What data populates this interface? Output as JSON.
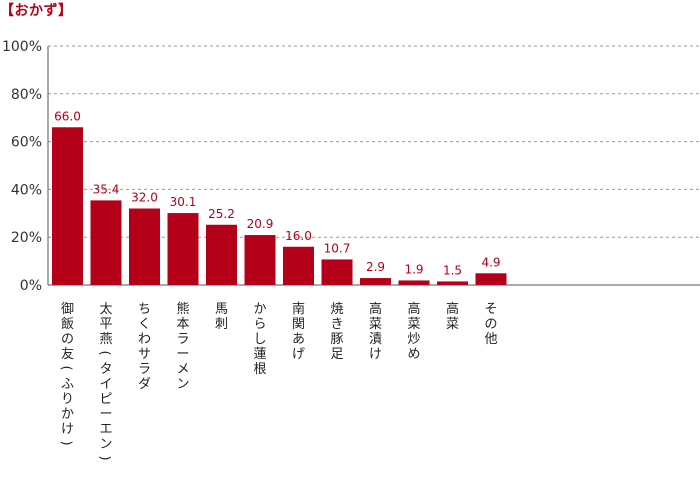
{
  "heading": "【おかず】",
  "chart_data": {
    "type": "bar",
    "categories": [
      "御飯の友(ふりかけ)",
      "太平燕(タイピーエン)",
      "ちくわサラダ",
      "熊本ラーメン",
      "馬刺",
      "からし蓮根",
      "南関あげ",
      "焼き豚足",
      "高菜漬け",
      "高菜炒め",
      "高菜",
      "その他"
    ],
    "values": [
      66.0,
      35.4,
      32.0,
      30.1,
      25.2,
      20.9,
      16.0,
      10.7,
      2.9,
      1.9,
      1.5,
      4.9
    ],
    "value_labels": [
      "66.0",
      "35.4",
      "32.0",
      "30.1",
      "25.2",
      "20.9",
      "16.0",
      "10.7",
      "2.9",
      "1.9",
      "1.5",
      "4.9"
    ],
    "yticks": [
      0,
      20,
      40,
      60,
      80,
      100
    ],
    "ytick_labels": [
      "0%",
      "20%",
      "40%",
      "60%",
      "80%",
      "100%"
    ],
    "ylim": [
      0,
      100
    ],
    "grid": true,
    "colors": {
      "bar": "#b5001a",
      "label": "#b5001a",
      "grid": "#999999",
      "axis": "#555555"
    }
  }
}
